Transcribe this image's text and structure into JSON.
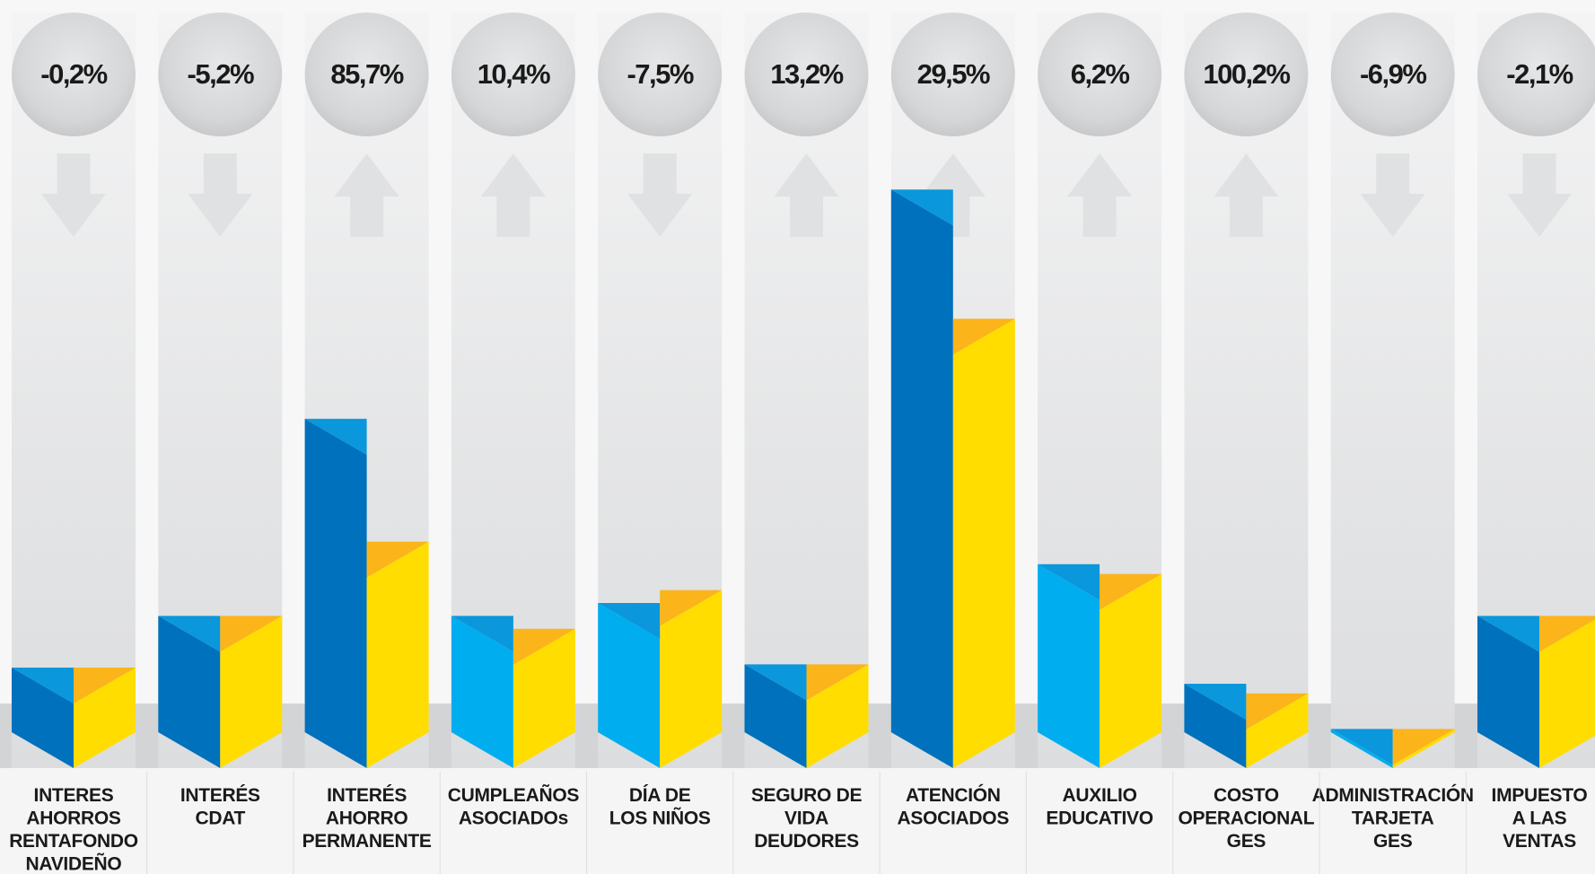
{
  "chart_data": {
    "type": "bar",
    "style": "3d-prism-paired-columns",
    "categories": [
      [
        "INTERES",
        "AHORROS",
        "RENTAFONDO",
        "NAVIDEÑO"
      ],
      [
        "INTERÉS",
        "CDAT"
      ],
      [
        "INTERÉS",
        "AHORRO",
        "PERMANENTE"
      ],
      [
        "CUMPLEAÑOS",
        "ASOCIADOs"
      ],
      [
        "DÍA DE",
        "LOS NIÑOS"
      ],
      [
        "SEGURO DE",
        "VIDA",
        "DEUDORES"
      ],
      [
        "ATENCIÓN",
        "ASOCIADOS"
      ],
      [
        "AUXILIO",
        "EDUCATIVO"
      ],
      [
        "COSTO",
        "OPERACIONAL",
        "GES"
      ],
      [
        "ADMINISTRACIÓN",
        "TARJETA",
        "GES"
      ],
      [
        "IMPUESTO",
        "A LAS",
        "VENTAS"
      ]
    ],
    "change_labels": [
      "-0,2%",
      "-5,2%",
      "85,7%",
      "10,4%",
      "-7,5%",
      "13,2%",
      "29,5%",
      "6,2%",
      "100,2%",
      "-6,9%",
      "-2,1%"
    ],
    "change_values": [
      -0.2,
      -5.2,
      85.7,
      10.4,
      -7.5,
      13.2,
      29.5,
      6.2,
      100.2,
      -6.9,
      -2.1
    ],
    "direction": [
      "down",
      "down",
      "up",
      "up",
      "down",
      "up",
      "up",
      "up",
      "up",
      "down",
      "down"
    ],
    "series": [
      {
        "values": [
          20,
          36,
          97,
          36,
          40,
          21,
          168,
          52,
          15,
          1,
          36
        ]
      },
      {
        "values": [
          20,
          36,
          59,
          32,
          44,
          21,
          128,
          49,
          12,
          1,
          36
        ]
      }
    ],
    "ylim": [
      0,
      175
    ],
    "colors": {
      "blue_dark": "#0071BC",
      "blue_light": "#00ADEF",
      "blue_top": "#0A97DB",
      "yellow": "#FFDD00",
      "yellow_top": "#FBB41A",
      "circle": "#D4D5D7",
      "arrow": "#E0E1E3",
      "column_bg": "#E6E7E8",
      "floor": "#D3D4D6",
      "text": "#1A1A1A"
    },
    "blue_shade": [
      "blue_dark",
      "blue_dark",
      "blue_dark",
      "blue_light",
      "blue_light",
      "blue_dark",
      "blue_dark",
      "blue_light",
      "blue_dark",
      "blue_light",
      "blue_dark"
    ]
  }
}
